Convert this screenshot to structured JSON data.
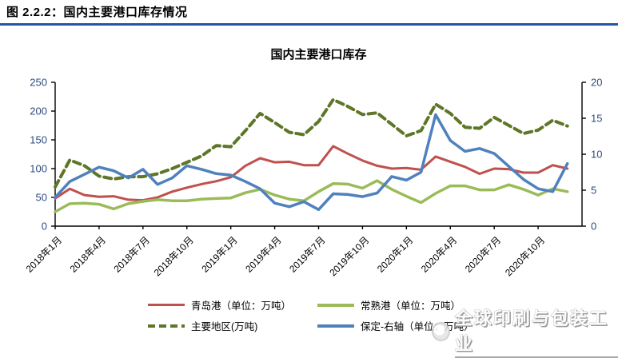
{
  "header": {
    "figure_label": "图 2.2.2：国内主要港口库存情况"
  },
  "watermark": {
    "text": "全球印刷与包装工业"
  },
  "colors": {
    "header_rule": "#2157A6",
    "axis_label": "#2E4C7E",
    "axis_line": "#000000",
    "x_label": "#000000"
  },
  "chart_data": {
    "type": "line",
    "title": "国内主要港口库存",
    "grid": false,
    "legend_position": "bottom",
    "months": [
      "2018-01",
      "2018-02",
      "2018-03",
      "2018-04",
      "2018-05",
      "2018-06",
      "2018-07",
      "2018-08",
      "2018-09",
      "2018-10",
      "2018-11",
      "2018-12",
      "2019-01",
      "2019-02",
      "2019-03",
      "2019-04",
      "2019-05",
      "2019-06",
      "2019-07",
      "2019-08",
      "2019-09",
      "2019-10",
      "2019-11",
      "2019-12",
      "2020-01",
      "2020-02",
      "2020-03",
      "2020-04",
      "2020-05",
      "2020-06",
      "2020-07",
      "2020-08",
      "2020-09",
      "2020-10",
      "2020-11",
      "2020-12"
    ],
    "x_tick_labels": [
      "2018年1月",
      "2018年4月",
      "2018年7月",
      "2018年10月",
      "2019年1月",
      "2019年4月",
      "2019年7月",
      "2019年10月",
      "2020年1月",
      "2020年4月",
      "2020年7月",
      "2020年10月"
    ],
    "x_tick_month_indices": [
      0,
      3,
      6,
      9,
      12,
      15,
      18,
      21,
      24,
      27,
      30,
      33
    ],
    "left_axis": {
      "min": 0,
      "max": 250,
      "ticks": [
        0,
        50,
        100,
        150,
        200,
        250
      ]
    },
    "right_axis": {
      "min": 0,
      "max": 20,
      "ticks": [
        0,
        5,
        10,
        15,
        20
      ]
    },
    "series": [
      {
        "name": "青岛港（单位：万吨）",
        "key": "qingdao",
        "axis": "left",
        "style": "solid",
        "color": "#C0504D",
        "width": 3,
        "values": [
          48,
          65,
          54,
          51,
          52,
          46,
          45,
          50,
          60,
          67,
          73,
          78,
          85,
          105,
          118,
          111,
          112,
          106,
          106,
          139,
          126,
          114,
          105,
          100,
          101,
          98,
          121,
          112,
          103,
          91,
          100,
          99,
          93,
          93,
          106,
          100
        ]
      },
      {
        "name": "常熟港（单位：万吨）",
        "key": "changshu",
        "axis": "left",
        "style": "solid",
        "color": "#9BBB59",
        "width": 3.5,
        "values": [
          25,
          39,
          40,
          38,
          30,
          39,
          43,
          46,
          44,
          44,
          47,
          48,
          49,
          58,
          64,
          54,
          47,
          44,
          60,
          74,
          73,
          66,
          79,
          64,
          52,
          41,
          57,
          70,
          70,
          63,
          63,
          72,
          64,
          54,
          65,
          60
        ]
      },
      {
        "name": "主要地区(万吨)",
        "key": "zhuyaodiqu",
        "axis": "left",
        "style": "dashed",
        "color": "#5E7628",
        "width": 4,
        "values": [
          68,
          115,
          105,
          87,
          82,
          86,
          86,
          91,
          100,
          111,
          122,
          140,
          138,
          166,
          196,
          180,
          163,
          159,
          182,
          220,
          208,
          194,
          197,
          177,
          157,
          166,
          212,
          196,
          172,
          170,
          189,
          175,
          161,
          167,
          184,
          174
        ]
      },
      {
        "name": "保定-右轴（单位：万吨）",
        "key": "baoding",
        "axis": "right",
        "style": "solid",
        "color": "#4F81BD",
        "width": 3.5,
        "values": [
          4.0,
          6.2,
          7.2,
          8.2,
          7.7,
          6.7,
          7.9,
          5.8,
          6.7,
          8.4,
          7.9,
          7.3,
          7.1,
          6.2,
          5.2,
          3.2,
          2.7,
          3.4,
          2.3,
          4.5,
          4.4,
          4.1,
          4.6,
          6.9,
          6.4,
          7.5,
          15.5,
          11.9,
          10.4,
          10.8,
          10.1,
          8.3,
          6.5,
          5.2,
          4.8,
          8.7
        ]
      }
    ]
  }
}
